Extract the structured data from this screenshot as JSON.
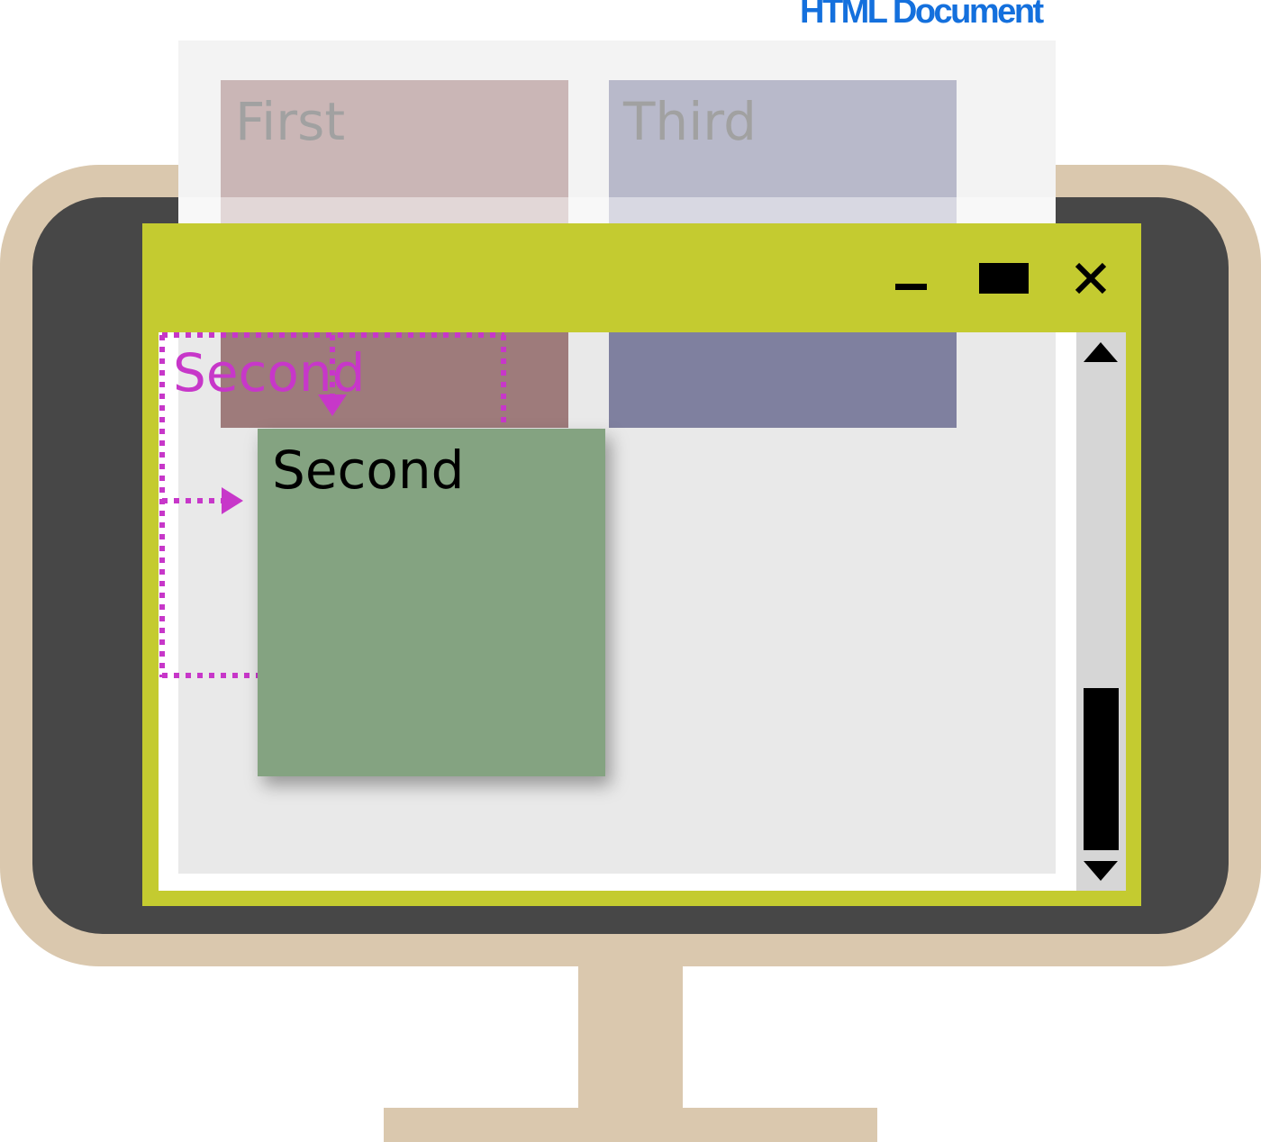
{
  "document_label": "HTML Document",
  "boxes": {
    "first": "First",
    "second_original": "Second",
    "second_positioned": "Second",
    "third": "Third"
  },
  "window_controls": {
    "minimize_icon": "minimize-icon",
    "maximize_icon": "maximize-icon",
    "close_icon": "close-icon"
  },
  "scrollbar": {
    "up_icon": "triangle-up-icon",
    "down_icon": "triangle-down-icon"
  },
  "colors": {
    "monitor": "#dac8ae",
    "screen": "#474747",
    "window_frame": "#c4cb30",
    "first_box": "#9e7b7b",
    "second_box": "#84a381",
    "third_box": "#7f809f",
    "offset_marker": "#c737c9",
    "document_label": "#1470dd"
  }
}
